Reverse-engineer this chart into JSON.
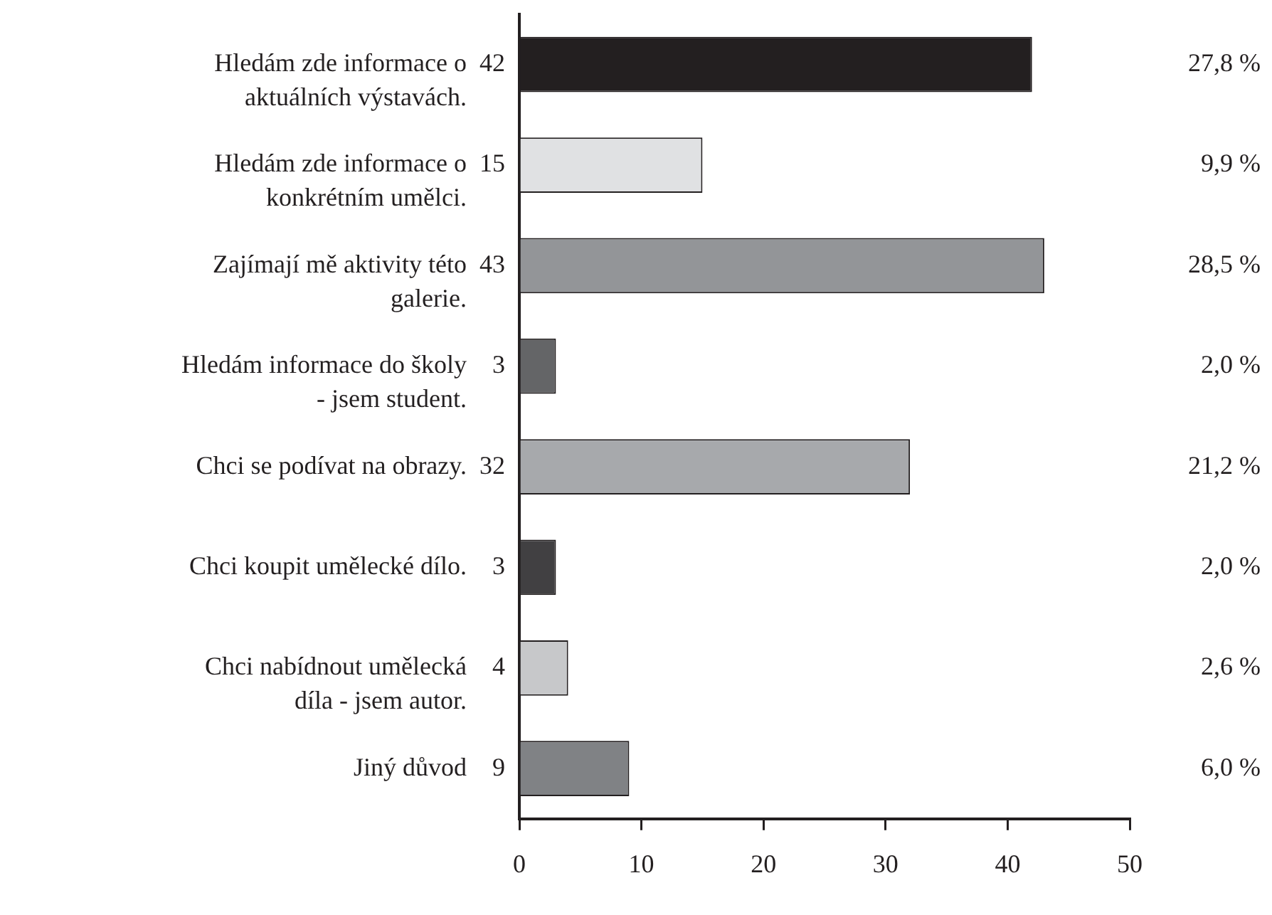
{
  "chart_data": {
    "type": "bar",
    "orientation": "horizontal",
    "categories": [
      "Hledám zde informace o aktuálních výstavách.",
      "Hledám zde informace o konkrétním umělci.",
      "Zajímají mě aktivity této galerie.",
      "Hledám informace do školy - jsem student.",
      "Chci se podívat na obrazy.",
      "Chci koupit umělecké dílo.",
      "Chci nabídnout umělecká díla - jsem autor.",
      "Jiný důvod"
    ],
    "values": [
      42,
      15,
      43,
      3,
      32,
      3,
      4,
      9
    ],
    "colors": [
      "#231f20",
      "#e0e1e3",
      "#939598",
      "#646567",
      "#a7a9ac",
      "#414042",
      "#c7c8ca",
      "#808285"
    ],
    "data_labels": true,
    "annotations": [
      "27,8 %",
      "9,9 %",
      "28,5 %",
      "2,0 %",
      "21,2 %",
      "2,0 %",
      "2,6 %",
      "6,0 %"
    ],
    "xlim": [
      0,
      50
    ],
    "xticks": [
      0,
      10,
      20,
      30,
      40,
      50
    ],
    "grid": false,
    "legend": false
  }
}
